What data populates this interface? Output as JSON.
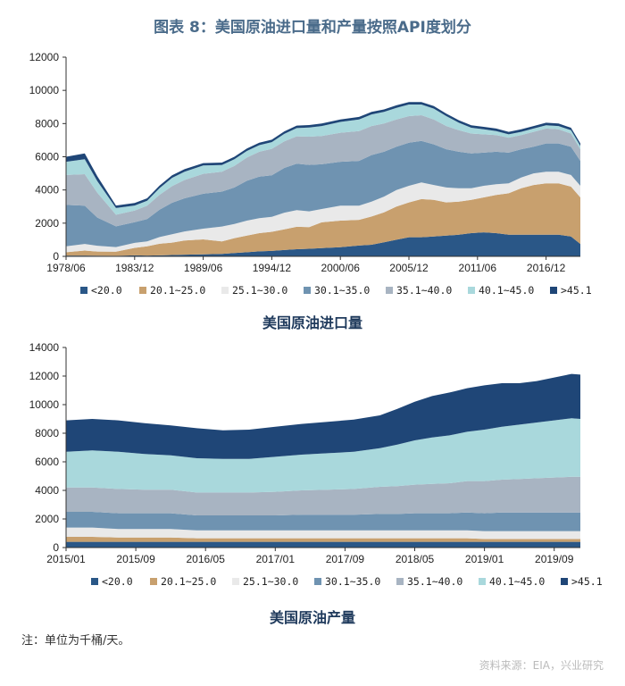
{
  "header": {
    "title": "图表 8：美国原油进口量和产量按照API度划分"
  },
  "colors": [
    "#2a5787",
    "#c8a06e",
    "#e9e9e9",
    "#6f93b1",
    "#a8b4c2",
    "#a9d8dc",
    "#1f4677"
  ],
  "chart_data": [
    {
      "type": "area",
      "stacked": true,
      "title": "美国原油进口量",
      "xlabel": "",
      "ylabel": "",
      "ylim": [
        0,
        12000
      ],
      "yticks": [
        "0",
        "2000",
        "4000",
        "6000",
        "8000",
        "10000",
        "12000"
      ],
      "x_range": [
        1978.5,
        2019.75
      ],
      "x_ticks": [
        {
          "label": "1978/06",
          "t": 1978.5
        },
        {
          "label": "1983/12",
          "t": 1984.0
        },
        {
          "label": "1989/06",
          "t": 1989.5
        },
        {
          "label": "1994/12",
          "t": 1995.0
        },
        {
          "label": "2000/06",
          "t": 2000.5
        },
        {
          "label": "2005/12",
          "t": 2006.0
        },
        {
          "label": "2011/06",
          "t": 2011.5
        },
        {
          "label": "2016/12",
          "t": 2017.0
        }
      ],
      "x": [
        1978.5,
        1980,
        1981,
        1982.5,
        1984,
        1985,
        1986,
        1987,
        1988,
        1989.5,
        1991,
        1992,
        1993,
        1994,
        1995,
        1996,
        1997,
        1998,
        1999,
        2000.5,
        2002,
        2003,
        2004,
        2005,
        2006,
        2007,
        2008,
        2009,
        2010,
        2011,
        2012,
        2013,
        2014,
        2015,
        2016,
        2017,
        2018,
        2019,
        2019.75
      ],
      "series": [
        {
          "name": "<20.0",
          "values": [
            50,
            50,
            40,
            30,
            60,
            50,
            60,
            80,
            100,
            120,
            150,
            200,
            250,
            300,
            330,
            380,
            430,
            460,
            500,
            550,
            650,
            700,
            850,
            1000,
            1150,
            1150,
            1200,
            1250,
            1300,
            1400,
            1450,
            1400,
            1300,
            1300,
            1300,
            1300,
            1300,
            1200,
            750
          ]
        },
        {
          "name": "20.1~25.0",
          "values": [
            200,
            300,
            250,
            250,
            450,
            550,
            700,
            750,
            850,
            900,
            750,
            900,
            1000,
            1100,
            1150,
            1250,
            1350,
            1300,
            1550,
            1600,
            1550,
            1700,
            1800,
            2000,
            2100,
            2300,
            2200,
            2000,
            2000,
            2000,
            2100,
            2300,
            2500,
            2800,
            3000,
            3100,
            3100,
            3000,
            2800
          ]
        },
        {
          "name": "25.1~30.0",
          "values": [
            350,
            400,
            350,
            280,
            300,
            300,
            400,
            500,
            550,
            650,
            900,
            850,
            900,
            900,
            900,
            1000,
            1000,
            950,
            800,
            900,
            850,
            900,
            950,
            1000,
            1000,
            1000,
            900,
            900,
            800,
            700,
            700,
            650,
            600,
            650,
            700,
            700,
            700,
            700,
            700
          ]
        },
        {
          "name": "30.1~35.0",
          "values": [
            2500,
            2300,
            1700,
            1250,
            1250,
            1350,
            1650,
            1900,
            2000,
            2100,
            2100,
            2200,
            2400,
            2500,
            2500,
            2700,
            2800,
            2800,
            2700,
            2650,
            2700,
            2800,
            2700,
            2600,
            2600,
            2500,
            2450,
            2300,
            2200,
            2100,
            2000,
            1950,
            1850,
            1700,
            1600,
            1700,
            1700,
            1700,
            1500
          ]
        },
        {
          "name": "35.1~40.0",
          "values": [
            1800,
            1900,
            1500,
            700,
            700,
            800,
            900,
            1000,
            1100,
            1200,
            1200,
            1300,
            1400,
            1500,
            1600,
            1600,
            1650,
            1700,
            1700,
            1750,
            1800,
            1750,
            1700,
            1650,
            1600,
            1550,
            1500,
            1400,
            1300,
            1200,
            1100,
            1000,
            900,
            850,
            900,
            900,
            850,
            800,
            700
          ]
        },
        {
          "name": "40.1~45.0",
          "values": [
            800,
            900,
            700,
            400,
            300,
            300,
            400,
            500,
            500,
            500,
            400,
            400,
            400,
            400,
            400,
            450,
            500,
            550,
            600,
            650,
            700,
            700,
            700,
            700,
            700,
            650,
            650,
            600,
            450,
            350,
            300,
            250,
            200,
            200,
            200,
            200,
            200,
            200,
            200
          ]
        },
        {
          "name": ">45.1",
          "values": [
            300,
            350,
            300,
            150,
            150,
            150,
            150,
            150,
            150,
            150,
            150,
            150,
            150,
            150,
            150,
            150,
            150,
            150,
            150,
            150,
            150,
            150,
            150,
            150,
            150,
            150,
            150,
            150,
            150,
            150,
            150,
            150,
            150,
            150,
            150,
            150,
            150,
            150,
            150
          ]
        }
      ]
    },
    {
      "type": "area",
      "stacked": true,
      "title": "美国原油产量",
      "xlabel": "",
      "ylabel": "",
      "ylim": [
        0,
        14000
      ],
      "yticks": [
        "0",
        "2000",
        "4000",
        "6000",
        "8000",
        "10000",
        "12000",
        "14000"
      ],
      "x_range": [
        0,
        59
      ],
      "x_ticks": [
        {
          "label": "2015/01",
          "t": 0
        },
        {
          "label": "2015/09",
          "t": 8
        },
        {
          "label": "2016/05",
          "t": 16
        },
        {
          "label": "2017/01",
          "t": 24
        },
        {
          "label": "2017/09",
          "t": 32
        },
        {
          "label": "2018/05",
          "t": 40
        },
        {
          "label": "2019/01",
          "t": 48
        },
        {
          "label": "2019/09",
          "t": 56
        }
      ],
      "x": [
        0,
        3,
        6,
        9,
        12,
        15,
        18,
        21,
        24,
        27,
        30,
        33,
        36,
        38,
        40,
        42,
        44,
        46,
        48,
        50,
        52,
        54,
        56,
        58,
        59
      ],
      "series": [
        {
          "name": "<20.0",
          "values": [
            400,
            400,
            400,
            400,
            400,
            400,
            400,
            400,
            400,
            400,
            400,
            400,
            400,
            400,
            400,
            400,
            400,
            400,
            400,
            400,
            400,
            400,
            400,
            400,
            400
          ]
        },
        {
          "name": "20.1~25.0",
          "values": [
            350,
            350,
            300,
            300,
            300,
            250,
            250,
            250,
            250,
            250,
            250,
            250,
            250,
            250,
            250,
            250,
            250,
            250,
            200,
            200,
            200,
            200,
            200,
            200,
            200
          ]
        },
        {
          "name": "25.1~30.0",
          "values": [
            650,
            650,
            600,
            600,
            600,
            550,
            550,
            550,
            550,
            550,
            550,
            550,
            550,
            550,
            550,
            550,
            550,
            550,
            550,
            550,
            550,
            550,
            550,
            550,
            550
          ]
        },
        {
          "name": "30.1~35.0",
          "values": [
            1100,
            1100,
            1100,
            1100,
            1100,
            1050,
            1050,
            1050,
            1050,
            1100,
            1100,
            1100,
            1150,
            1150,
            1200,
            1200,
            1200,
            1250,
            1250,
            1300,
            1300,
            1300,
            1300,
            1300,
            1300
          ]
        },
        {
          "name": "35.1~40.0",
          "values": [
            1700,
            1700,
            1700,
            1650,
            1650,
            1600,
            1600,
            1600,
            1650,
            1700,
            1750,
            1800,
            1900,
            1950,
            2000,
            2050,
            2100,
            2200,
            2250,
            2300,
            2350,
            2400,
            2450,
            2500,
            2500
          ]
        },
        {
          "name": "40.1~45.0",
          "values": [
            2500,
            2600,
            2600,
            2500,
            2400,
            2400,
            2350,
            2350,
            2450,
            2500,
            2550,
            2600,
            2700,
            2900,
            3100,
            3250,
            3350,
            3450,
            3600,
            3700,
            3800,
            3900,
            4000,
            4100,
            4050
          ]
        },
        {
          "name": ">45.1",
          "values": [
            2200,
            2200,
            2200,
            2150,
            2100,
            2100,
            2000,
            2050,
            2100,
            2150,
            2200,
            2250,
            2300,
            2500,
            2700,
            2900,
            3000,
            3050,
            3100,
            3050,
            2900,
            2900,
            3000,
            3100,
            3100
          ]
        }
      ]
    }
  ],
  "subtitles": {
    "chart1": "美国原油进口量",
    "chart2": "美国原油产量"
  },
  "footer": {
    "note": "注：单位为千桶/天。",
    "source": "资料来源：EIA，兴业研究"
  }
}
